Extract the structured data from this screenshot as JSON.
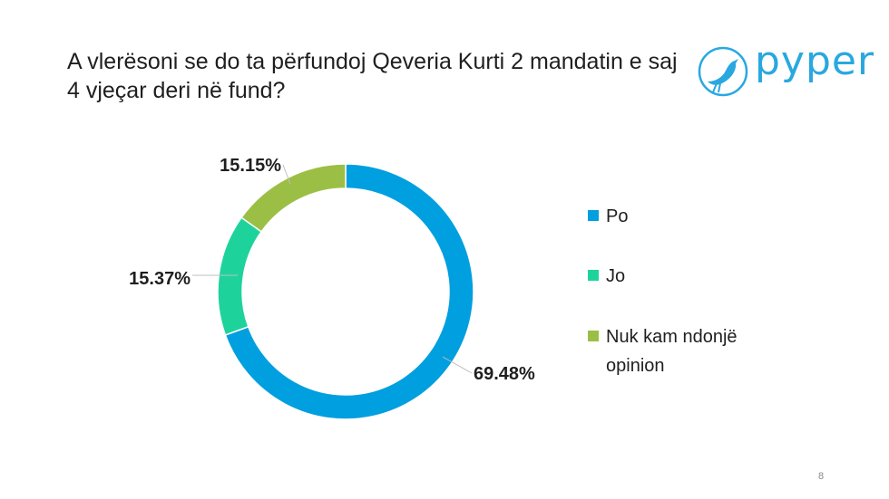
{
  "slide": {
    "title": "A vlerësoni se do ta përfundoj Qeveria Kurti 2 mandatin e saj 4 vjeçar deri në fund?",
    "page_number": "8"
  },
  "logo": {
    "text": "pyper",
    "color": "#29a8e0",
    "icon": "bird-icon"
  },
  "chart_data": {
    "type": "pie",
    "variant": "donut",
    "title": "",
    "categories": [
      "Po",
      "Jo",
      "Nuk kam ndonjë opinion"
    ],
    "values": [
      69.48,
      15.37,
      15.15
    ],
    "data_labels": [
      "69.48%",
      "15.37%",
      "15.15%"
    ],
    "colors": [
      "#009fdf",
      "#1ed39b",
      "#9bbf45"
    ],
    "legend_position": "right"
  }
}
